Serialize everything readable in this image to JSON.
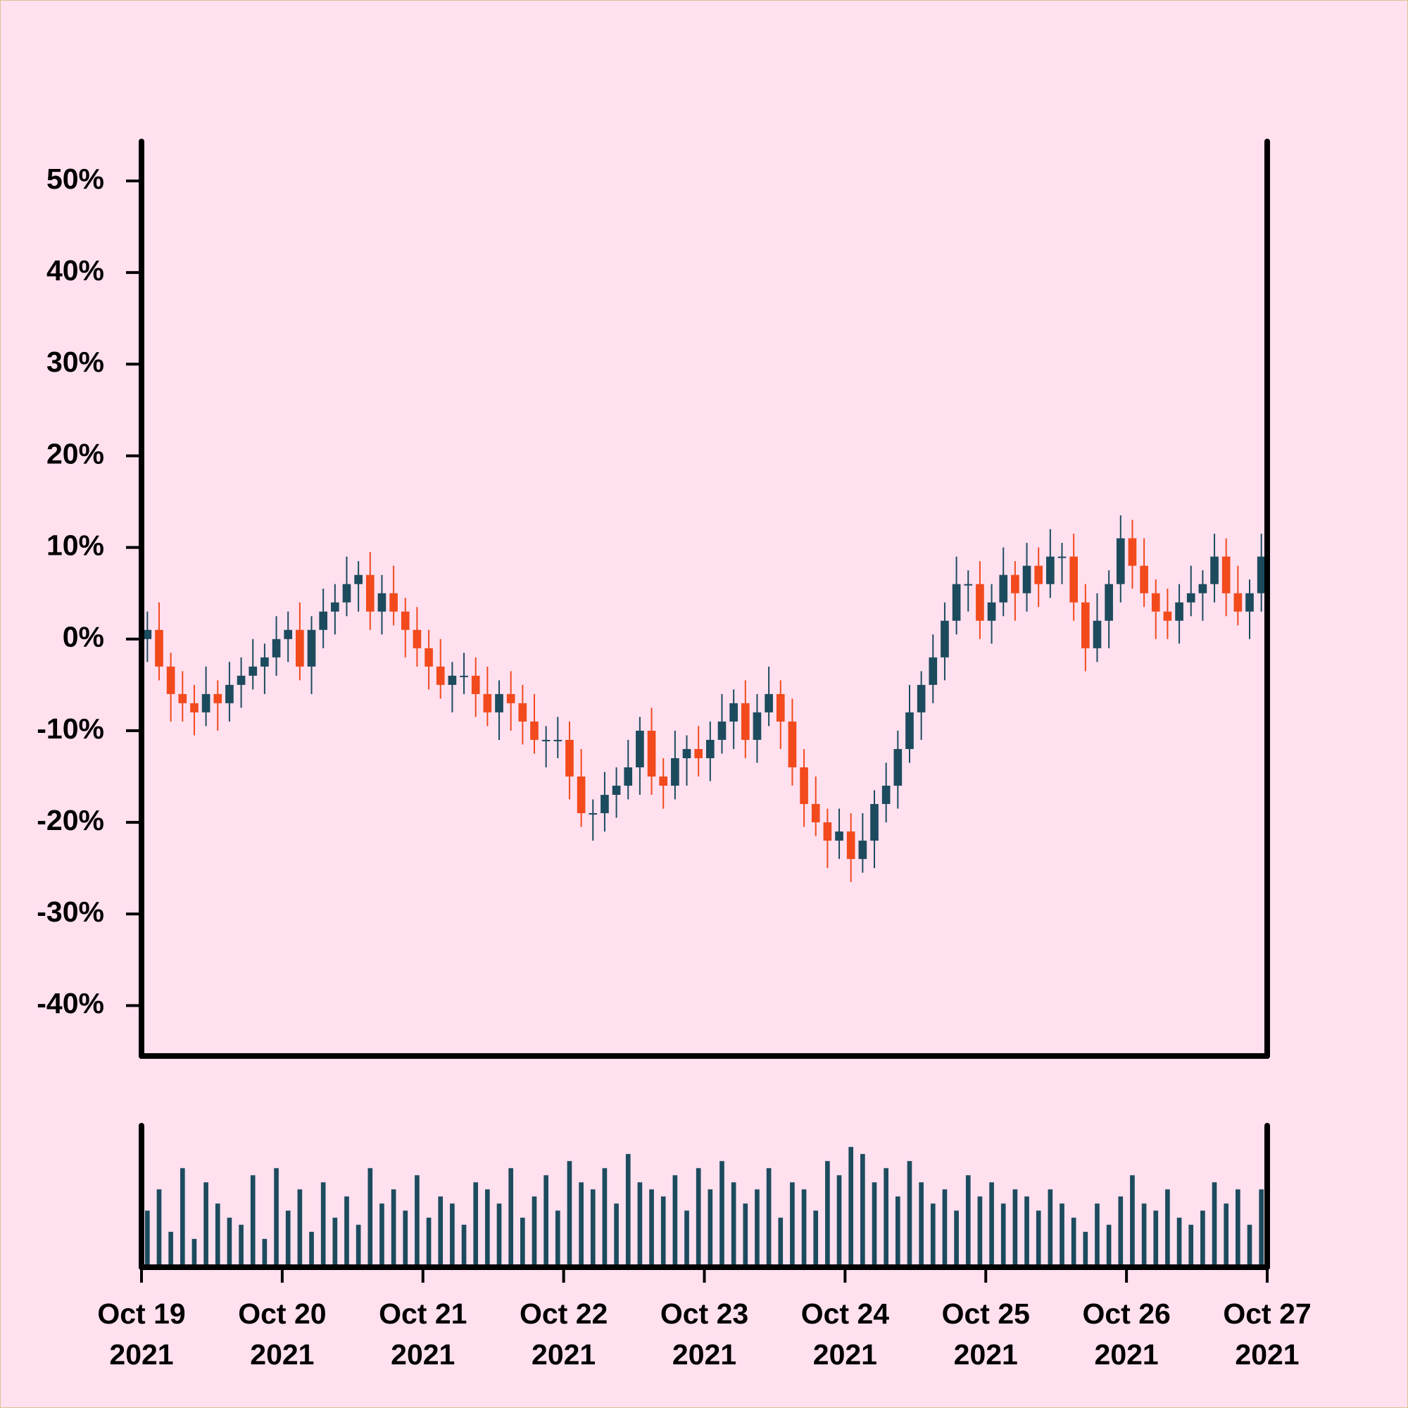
{
  "chart_data": {
    "type": "candlestick",
    "xlim": [
      0,
      96
    ],
    "xticks": [
      {
        "value": 0,
        "label": "Oct 19 2021"
      },
      {
        "value": 12,
        "label": "Oct 20 2021"
      },
      {
        "value": 24,
        "label": "Oct 21 2021"
      },
      {
        "value": 36,
        "label": "Oct 22 2021"
      },
      {
        "value": 48,
        "label": "Oct 23 2021"
      },
      {
        "value": 60,
        "label": "Oct 24 2021"
      },
      {
        "value": 72,
        "label": "Oct 25 2021"
      },
      {
        "value": 84,
        "label": "Oct 26 2021"
      },
      {
        "value": 96,
        "label": "Oct 27 2021"
      }
    ],
    "ylim": [
      -45.5,
      54.3
    ],
    "yticks": [
      {
        "value": -40,
        "label": "-40%"
      },
      {
        "value": -30,
        "label": "-30%"
      },
      {
        "value": -20,
        "label": "-20%"
      },
      {
        "value": -10,
        "label": "-10%"
      },
      {
        "value": 0,
        "label": "0%"
      },
      {
        "value": 10,
        "label": "10%"
      },
      {
        "value": 20,
        "label": "20%"
      },
      {
        "value": 30,
        "label": "30%"
      },
      {
        "value": 40,
        "label": "40%"
      },
      {
        "value": 50,
        "label": "50%"
      }
    ],
    "up_color": "#1c4b5e",
    "down_color": "#f24a1d",
    "open": [
      0,
      1,
      -3,
      -6,
      -7,
      -8,
      -6,
      -7,
      -5,
      -4,
      -3,
      -2,
      0,
      1,
      -3,
      1,
      3,
      4,
      6,
      7,
      3,
      5,
      3,
      1,
      -1,
      -3,
      -5,
      -4,
      -4,
      -6,
      -8,
      -6,
      -7,
      -9,
      -11,
      -11,
      -11,
      -15,
      -19,
      -19,
      -17,
      -16,
      -14,
      -10,
      -15,
      -16,
      -13,
      -12,
      -13,
      -11,
      -9,
      -7,
      -11,
      -8,
      -6,
      -9,
      -14,
      -18,
      -20,
      -22,
      -21,
      -24,
      -22,
      -18,
      -16,
      -12,
      -8,
      -5,
      -2,
      2,
      6,
      6,
      2,
      4,
      7,
      5,
      8,
      6,
      9,
      9,
      4,
      -1,
      2,
      6,
      11,
      8,
      5,
      3,
      2,
      4,
      5,
      6,
      9,
      5,
      3,
      5
    ],
    "high": [
      3,
      4,
      -1.5,
      -3.5,
      -5,
      -3,
      -4.5,
      -2.5,
      -2,
      0,
      -0.5,
      2.5,
      3,
      4,
      2.5,
      5.5,
      6,
      9,
      8.5,
      9.5,
      7,
      8,
      4.5,
      3.5,
      1,
      0,
      -2.5,
      -1.5,
      -2,
      -3,
      -4.5,
      -3.5,
      -5,
      -6,
      -9.5,
      -8.5,
      -9,
      -12,
      -17.5,
      -14.5,
      -14,
      -11,
      -8.5,
      -7.5,
      -13,
      -10,
      -10.5,
      -9.5,
      -9,
      -6,
      -5.5,
      -4.5,
      -6,
      -3,
      -4.5,
      -6.5,
      -12,
      -15,
      -18.5,
      -18.5,
      -19,
      -19,
      -16.5,
      -13.5,
      -10,
      -5,
      -3.5,
      0.5,
      4,
      9,
      7.5,
      8.5,
      6,
      10,
      8.5,
      10.5,
      10,
      12,
      10.5,
      11.5,
      6,
      5,
      7.5,
      13.5,
      13,
      11,
      6.5,
      5.5,
      6,
      8,
      7.5,
      11.5,
      11,
      8,
      6.5,
      11.5
    ],
    "low": [
      -2.5,
      -4.5,
      -9,
      -9,
      -10.5,
      -9.5,
      -10,
      -9,
      -7.5,
      -5.5,
      -6,
      -4,
      -2.5,
      -4.5,
      -6,
      -1,
      0.5,
      2.5,
      3,
      1,
      0.5,
      1.5,
      -2,
      -3,
      -5.5,
      -6.5,
      -8,
      -6,
      -8.5,
      -9.5,
      -11,
      -10,
      -11.5,
      -12.5,
      -14,
      -13,
      -17.5,
      -20.5,
      -22,
      -21,
      -19.5,
      -17.5,
      -17,
      -17,
      -18.5,
      -17.5,
      -16,
      -15,
      -15.5,
      -12.5,
      -12,
      -13,
      -13.5,
      -9.5,
      -12,
      -16,
      -20.5,
      -21.5,
      -25,
      -24,
      -26.5,
      -25.5,
      -25,
      -20,
      -18.5,
      -13.5,
      -11,
      -7,
      -4.5,
      0.5,
      3,
      0,
      -0.5,
      2.5,
      2,
      3,
      3.5,
      4.5,
      6,
      2,
      -3.5,
      -2.5,
      -1,
      4,
      5.5,
      3.5,
      0,
      0,
      -0.5,
      2.5,
      2,
      4,
      2.5,
      1.5,
      0,
      3
    ],
    "close": [
      1,
      -3,
      -6,
      -7,
      -8,
      -6,
      -7,
      -5,
      -4,
      -3,
      -2,
      0,
      1,
      -3,
      1,
      3,
      4,
      6,
      7,
      3,
      5,
      3,
      1,
      -1,
      -3,
      -5,
      -4,
      -4,
      -6,
      -8,
      -6,
      -7,
      -9,
      -11,
      -11,
      -11,
      -15,
      -19,
      -19,
      -17,
      -16,
      -14,
      -10,
      -15,
      -16,
      -13,
      -12,
      -13,
      -11,
      -9,
      -7,
      -11,
      -8,
      -6,
      -9,
      -14,
      -18,
      -20,
      -22,
      -21,
      -24,
      -22,
      -18,
      -16,
      -12,
      -8,
      -5,
      -2,
      2,
      6,
      6,
      2,
      4,
      7,
      5,
      8,
      6,
      9,
      9,
      4,
      -1,
      2,
      6,
      11,
      8,
      5,
      3,
      2,
      4,
      5,
      6,
      9,
      5,
      3,
      5,
      9
    ],
    "volume": {
      "color": "#1c4b5e",
      "ylim": [
        0,
        100
      ],
      "values": [
        40,
        55,
        25,
        70,
        20,
        60,
        45,
        35,
        30,
        65,
        20,
        70,
        40,
        55,
        25,
        60,
        35,
        50,
        30,
        70,
        45,
        55,
        40,
        65,
        35,
        50,
        45,
        30,
        60,
        55,
        45,
        70,
        35,
        50,
        65,
        40,
        75,
        60,
        55,
        70,
        45,
        80,
        60,
        55,
        50,
        65,
        40,
        70,
        55,
        75,
        60,
        45,
        55,
        70,
        35,
        60,
        55,
        40,
        75,
        65,
        85,
        80,
        60,
        70,
        50,
        75,
        60,
        45,
        55,
        40,
        65,
        50,
        60,
        45,
        55,
        50,
        40,
        55,
        45,
        35,
        25,
        45,
        30,
        50,
        65,
        45,
        40,
        55,
        35,
        30,
        40,
        60,
        45,
        55,
        30,
        55
      ]
    }
  }
}
